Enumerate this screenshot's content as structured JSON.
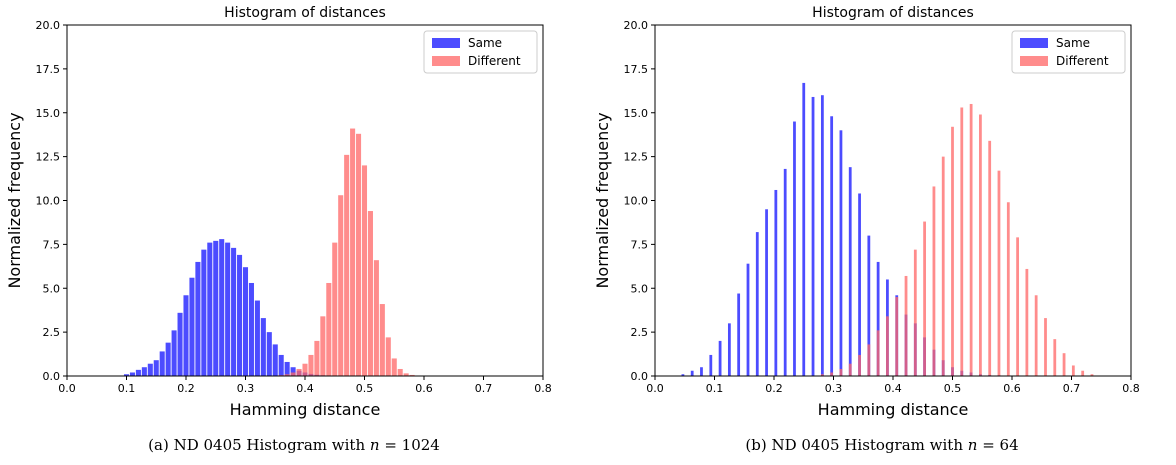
{
  "chart_data": [
    {
      "type": "bar",
      "title": "Histogram of distances",
      "xlabel": "Hamming distance",
      "ylabel": "Normalized frequency",
      "xlim": [
        0.0,
        0.8
      ],
      "ylim": [
        0.0,
        20.0
      ],
      "xticks": [
        "0.0",
        "0.1",
        "0.2",
        "0.3",
        "0.4",
        "0.5",
        "0.6",
        "0.7",
        "0.8"
      ],
      "yticks": [
        "0.0",
        "2.5",
        "5.0",
        "7.5",
        "10.0",
        "12.5",
        "15.0",
        "17.5",
        "20.0"
      ],
      "legend_position": "top-right",
      "series": [
        {
          "name": "Same",
          "color": "#0000ff",
          "x": [
            0.1,
            0.11,
            0.12,
            0.13,
            0.14,
            0.15,
            0.16,
            0.17,
            0.18,
            0.19,
            0.2,
            0.21,
            0.22,
            0.23,
            0.24,
            0.25,
            0.26,
            0.27,
            0.28,
            0.29,
            0.3,
            0.31,
            0.32,
            0.33,
            0.34,
            0.35,
            0.36,
            0.37,
            0.38,
            0.39,
            0.4,
            0.41,
            0.42,
            0.43,
            0.44
          ],
          "values": [
            0.1,
            0.2,
            0.35,
            0.5,
            0.7,
            0.9,
            1.4,
            1.9,
            2.6,
            3.6,
            4.6,
            5.6,
            6.5,
            7.2,
            7.6,
            7.7,
            7.8,
            7.6,
            7.3,
            6.9,
            6.2,
            5.3,
            4.3,
            3.3,
            2.5,
            1.8,
            1.2,
            0.8,
            0.5,
            0.3,
            0.2,
            0.12,
            0.07,
            0.04,
            0.02
          ]
        },
        {
          "name": "Different",
          "color": "#ff6666",
          "x": [
            0.36,
            0.37,
            0.38,
            0.39,
            0.4,
            0.41,
            0.42,
            0.43,
            0.44,
            0.45,
            0.46,
            0.47,
            0.48,
            0.49,
            0.5,
            0.51,
            0.52,
            0.53,
            0.54,
            0.55,
            0.56,
            0.57,
            0.58,
            0.59
          ],
          "values": [
            0.05,
            0.1,
            0.2,
            0.4,
            0.7,
            1.2,
            2.0,
            3.4,
            5.3,
            7.6,
            10.3,
            12.6,
            14.1,
            13.8,
            12.0,
            9.4,
            6.6,
            4.1,
            2.2,
            1.0,
            0.4,
            0.15,
            0.06,
            0.02
          ]
        }
      ]
    },
    {
      "type": "bar",
      "title": "Histogram of distances",
      "xlabel": "Hamming distance",
      "ylabel": "Normalized frequency",
      "xlim": [
        0.0,
        0.8
      ],
      "ylim": [
        0.0,
        20.0
      ],
      "xticks": [
        "0.0",
        "0.1",
        "0.2",
        "0.3",
        "0.4",
        "0.5",
        "0.6",
        "0.7",
        "0.8"
      ],
      "yticks": [
        "0.0",
        "2.5",
        "5.0",
        "7.5",
        "10.0",
        "12.5",
        "15.0",
        "17.5",
        "20.0"
      ],
      "legend_position": "top-right",
      "series": [
        {
          "name": "Same",
          "color": "#0000ff",
          "x": [
            0.0469,
            0.0625,
            0.0781,
            0.0938,
            0.1094,
            0.125,
            0.1406,
            0.1563,
            0.1719,
            0.1875,
            0.2031,
            0.2188,
            0.2344,
            0.25,
            0.2656,
            0.2813,
            0.2969,
            0.3125,
            0.3281,
            0.3438,
            0.3594,
            0.375,
            0.3906,
            0.4063,
            0.4219,
            0.4375,
            0.4531,
            0.4688,
            0.4844,
            0.5,
            0.5156,
            0.5313,
            0.5469,
            0.5625,
            0.5781,
            0.5938,
            0.6094
          ],
          "values": [
            0.1,
            0.3,
            0.5,
            1.2,
            2.0,
            3.0,
            4.7,
            6.4,
            8.2,
            9.5,
            10.6,
            11.8,
            14.5,
            16.7,
            15.9,
            16.0,
            14.8,
            14.0,
            11.9,
            10.4,
            8.0,
            6.5,
            5.5,
            4.6,
            3.5,
            3.0,
            2.2,
            1.5,
            0.9,
            0.5,
            0.3,
            0.2,
            0.1,
            0.06,
            0.04,
            0.02,
            0.01
          ]
        },
        {
          "name": "Different",
          "color": "#ff6666",
          "x": [
            0.2813,
            0.2969,
            0.3125,
            0.3281,
            0.3438,
            0.3594,
            0.375,
            0.3906,
            0.4063,
            0.4219,
            0.4375,
            0.4531,
            0.4688,
            0.4844,
            0.5,
            0.5156,
            0.5313,
            0.5469,
            0.5625,
            0.5781,
            0.5938,
            0.6094,
            0.625,
            0.6406,
            0.6563,
            0.6719,
            0.6875,
            0.7031,
            0.7188,
            0.7344
          ],
          "values": [
            0.1,
            0.2,
            0.4,
            0.7,
            1.2,
            1.8,
            2.6,
            3.4,
            4.5,
            5.7,
            7.2,
            8.8,
            10.8,
            12.5,
            14.2,
            15.3,
            15.5,
            14.9,
            13.4,
            11.7,
            9.9,
            7.9,
            6.1,
            4.6,
            3.3,
            2.1,
            1.3,
            0.6,
            0.3,
            0.1
          ]
        }
      ]
    }
  ],
  "captions": [
    {
      "prefix": "(a) ND 0405 Histogram with ",
      "var": "n",
      "suffix": " = 1024"
    },
    {
      "prefix": "(b) ND 0405 Histogram with ",
      "var": "n",
      "suffix": " = 64"
    }
  ]
}
